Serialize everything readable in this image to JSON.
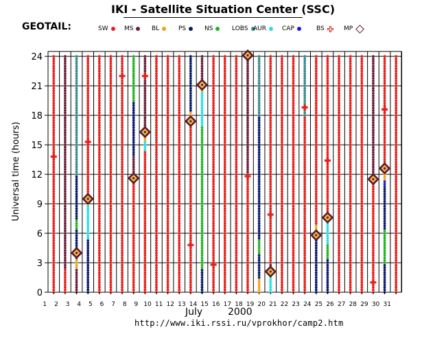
{
  "page": {
    "title": "IKI - Satellite Situation Center (SSC)",
    "satellite": "GEOTAIL:",
    "source_url": "http://www.iki.rssi.ru/vprokhor/camp2.htm"
  },
  "legend": [
    {
      "label": "SW",
      "color": "#e8201c",
      "marker": "dot"
    },
    {
      "label": "MS",
      "color": "#6b1f3a",
      "marker": "dot"
    },
    {
      "label": "BL",
      "color": "#f0a21c",
      "marker": "dot"
    },
    {
      "label": "PS",
      "color": "#0c1c6c",
      "marker": "dot"
    },
    {
      "label": "NS",
      "color": "#1fb51f",
      "marker": "dot"
    },
    {
      "label": "LOBS",
      "color": "#3a8a8a",
      "marker": "dot"
    },
    {
      "label": "AUR",
      "color": "#22e0e8",
      "marker": "dot"
    },
    {
      "label": "CAP",
      "color": "#1818e0",
      "marker": "dot"
    },
    {
      "label": "BS",
      "color": "#e8201c",
      "marker": "cross"
    },
    {
      "label": "MP",
      "color": "#5a1a2a",
      "marker": "diamond"
    }
  ],
  "chart_data": {
    "type": "scatter",
    "title": "",
    "ylabel": "Universal time (hours)",
    "month_label": "July",
    "year_label": "2000",
    "ylim": [
      0,
      24.5
    ],
    "yticks": [
      0,
      3,
      6,
      9,
      12,
      15,
      18,
      21,
      24
    ],
    "x_days": [
      1,
      2,
      3,
      4,
      5,
      6,
      7,
      8,
      9,
      10,
      11,
      12,
      13,
      14,
      15,
      16,
      17,
      18,
      19,
      20,
      21,
      22,
      23,
      24,
      25,
      26,
      27,
      28,
      29,
      30,
      31
    ],
    "grid": true,
    "column_segments": [
      {
        "day": 1,
        "segments": [
          [
            "SW",
            0,
            24
          ]
        ]
      },
      {
        "day": 2,
        "segments": [
          [
            "SW",
            0,
            2.5
          ],
          [
            "MS",
            2.5,
            24
          ]
        ]
      },
      {
        "day": 3,
        "segments": [
          [
            "MS",
            0,
            2.5
          ],
          [
            "BL",
            2.5,
            3.5
          ],
          [
            "PS",
            3.5,
            6.5
          ],
          [
            "NS",
            6.5,
            7.5
          ],
          [
            "PS",
            7.5,
            12
          ],
          [
            "LOBS",
            12,
            24
          ]
        ]
      },
      {
        "day": 4,
        "segments": [
          [
            "PS",
            0,
            5.5
          ],
          [
            "AUR",
            5.5,
            9
          ],
          [
            "BL",
            9,
            10
          ],
          [
            "SW",
            10,
            24
          ]
        ]
      },
      {
        "day": 5,
        "segments": [
          [
            "SW",
            0,
            24
          ]
        ]
      },
      {
        "day": 6,
        "segments": [
          [
            "SW",
            0,
            24
          ]
        ]
      },
      {
        "day": 7,
        "segments": [
          [
            "SW",
            0,
            24
          ]
        ]
      },
      {
        "day": 8,
        "segments": [
          [
            "SW",
            0,
            11.5
          ],
          [
            "MS",
            11.5,
            14
          ],
          [
            "PS",
            14,
            19.5
          ],
          [
            "NS",
            19.5,
            24
          ]
        ]
      },
      {
        "day": 9,
        "segments": [
          [
            "SW",
            0,
            14.5
          ],
          [
            "AUR",
            14.5,
            15.5
          ],
          [
            "BL",
            15.5,
            16
          ],
          [
            "MS",
            16,
            24
          ]
        ]
      },
      {
        "day": 10,
        "segments": [
          [
            "SW",
            0,
            24
          ]
        ]
      },
      {
        "day": 11,
        "segments": [
          [
            "SW",
            0,
            24
          ]
        ]
      },
      {
        "day": 12,
        "segments": [
          [
            "SW",
            0,
            24
          ]
        ]
      },
      {
        "day": 13,
        "segments": [
          [
            "SW",
            0,
            17
          ],
          [
            "BL",
            17,
            18.5
          ],
          [
            "PS",
            18.5,
            24
          ]
        ]
      },
      {
        "day": 14,
        "segments": [
          [
            "PS",
            0,
            2.5
          ],
          [
            "NS",
            2.5,
            17
          ],
          [
            "AUR",
            17,
            20.5
          ],
          [
            "BL",
            20.5,
            21
          ],
          [
            "MS",
            21,
            24
          ]
        ]
      },
      {
        "day": 15,
        "segments": [
          [
            "SW",
            0,
            24
          ]
        ]
      },
      {
        "day": 16,
        "segments": [
          [
            "SW",
            0,
            24
          ]
        ]
      },
      {
        "day": 17,
        "segments": [
          [
            "SW",
            0,
            24
          ]
        ]
      },
      {
        "day": 18,
        "segments": [
          [
            "SW",
            0,
            12
          ],
          [
            "MS",
            12,
            24
          ]
        ]
      },
      {
        "day": 19,
        "segments": [
          [
            "BL",
            0,
            1.5
          ],
          [
            "PS",
            1.5,
            4
          ],
          [
            "NS",
            4,
            5.5
          ],
          [
            "PS",
            5.5,
            18
          ],
          [
            "LOBS",
            18,
            24
          ]
        ]
      },
      {
        "day": 20,
        "segments": [
          [
            "AUR",
            0,
            2
          ],
          [
            "MS",
            2,
            3
          ],
          [
            "SW",
            3,
            24
          ]
        ]
      },
      {
        "day": 21,
        "segments": [
          [
            "SW",
            0,
            24
          ]
        ]
      },
      {
        "day": 22,
        "segments": [
          [
            "SW",
            0,
            24
          ]
        ]
      },
      {
        "day": 23,
        "segments": [
          [
            "SW",
            0,
            18
          ],
          [
            "LOBS",
            18,
            24
          ]
        ]
      },
      {
        "day": 24,
        "segments": [
          [
            "PS",
            0,
            5.5
          ],
          [
            "AUR",
            5.5,
            6.5
          ],
          [
            "BL",
            6.5,
            7
          ],
          [
            "SW",
            7,
            24
          ]
        ]
      },
      {
        "day": 25,
        "segments": [
          [
            "PS",
            0,
            3.5
          ],
          [
            "NS",
            3.5,
            5
          ],
          [
            "AUR",
            5,
            7.5
          ],
          [
            "SW",
            7.5,
            24
          ]
        ]
      },
      {
        "day": 26,
        "segments": [
          [
            "SW",
            0,
            24
          ]
        ]
      },
      {
        "day": 27,
        "segments": [
          [
            "SW",
            0,
            24
          ]
        ]
      },
      {
        "day": 28,
        "segments": [
          [
            "SW",
            0,
            24
          ]
        ]
      },
      {
        "day": 29,
        "segments": [
          [
            "SW",
            0,
            11.5
          ],
          [
            "MS",
            11.5,
            24
          ]
        ]
      },
      {
        "day": 30,
        "segments": [
          [
            "PS",
            0,
            3
          ],
          [
            "NS",
            3,
            6.5
          ],
          [
            "PS",
            6.5,
            11
          ],
          [
            "CAP",
            11,
            11.5
          ],
          [
            "BL",
            11.5,
            12.5
          ],
          [
            "SW",
            12.5,
            24
          ]
        ]
      },
      {
        "day": 31,
        "segments": [
          [
            "SW",
            0,
            24
          ]
        ]
      }
    ],
    "bow_shock_crossings": [
      {
        "day": 1,
        "ut": 13.8
      },
      {
        "day": 4,
        "ut": 15.3
      },
      {
        "day": 7,
        "ut": 22.0
      },
      {
        "day": 9,
        "ut": 22.0
      },
      {
        "day": 13,
        "ut": 4.8
      },
      {
        "day": 15,
        "ut": 2.8
      },
      {
        "day": 18,
        "ut": 11.8
      },
      {
        "day": 20,
        "ut": 7.9
      },
      {
        "day": 23,
        "ut": 18.8
      },
      {
        "day": 25,
        "ut": 13.4
      },
      {
        "day": 29,
        "ut": 1.0
      },
      {
        "day": 30,
        "ut": 18.6
      }
    ],
    "magnetopause_crossings": [
      {
        "day": 3,
        "ut": 4.0
      },
      {
        "day": 4,
        "ut": 9.5
      },
      {
        "day": 8,
        "ut": 11.6
      },
      {
        "day": 9,
        "ut": 16.3
      },
      {
        "day": 13,
        "ut": 17.4
      },
      {
        "day": 14,
        "ut": 21.1
      },
      {
        "day": 18,
        "ut": 24.1
      },
      {
        "day": 20,
        "ut": 2.1
      },
      {
        "day": 24,
        "ut": 5.8
      },
      {
        "day": 25,
        "ut": 7.6
      },
      {
        "day": 29,
        "ut": 11.5
      },
      {
        "day": 30,
        "ut": 12.6
      }
    ]
  }
}
